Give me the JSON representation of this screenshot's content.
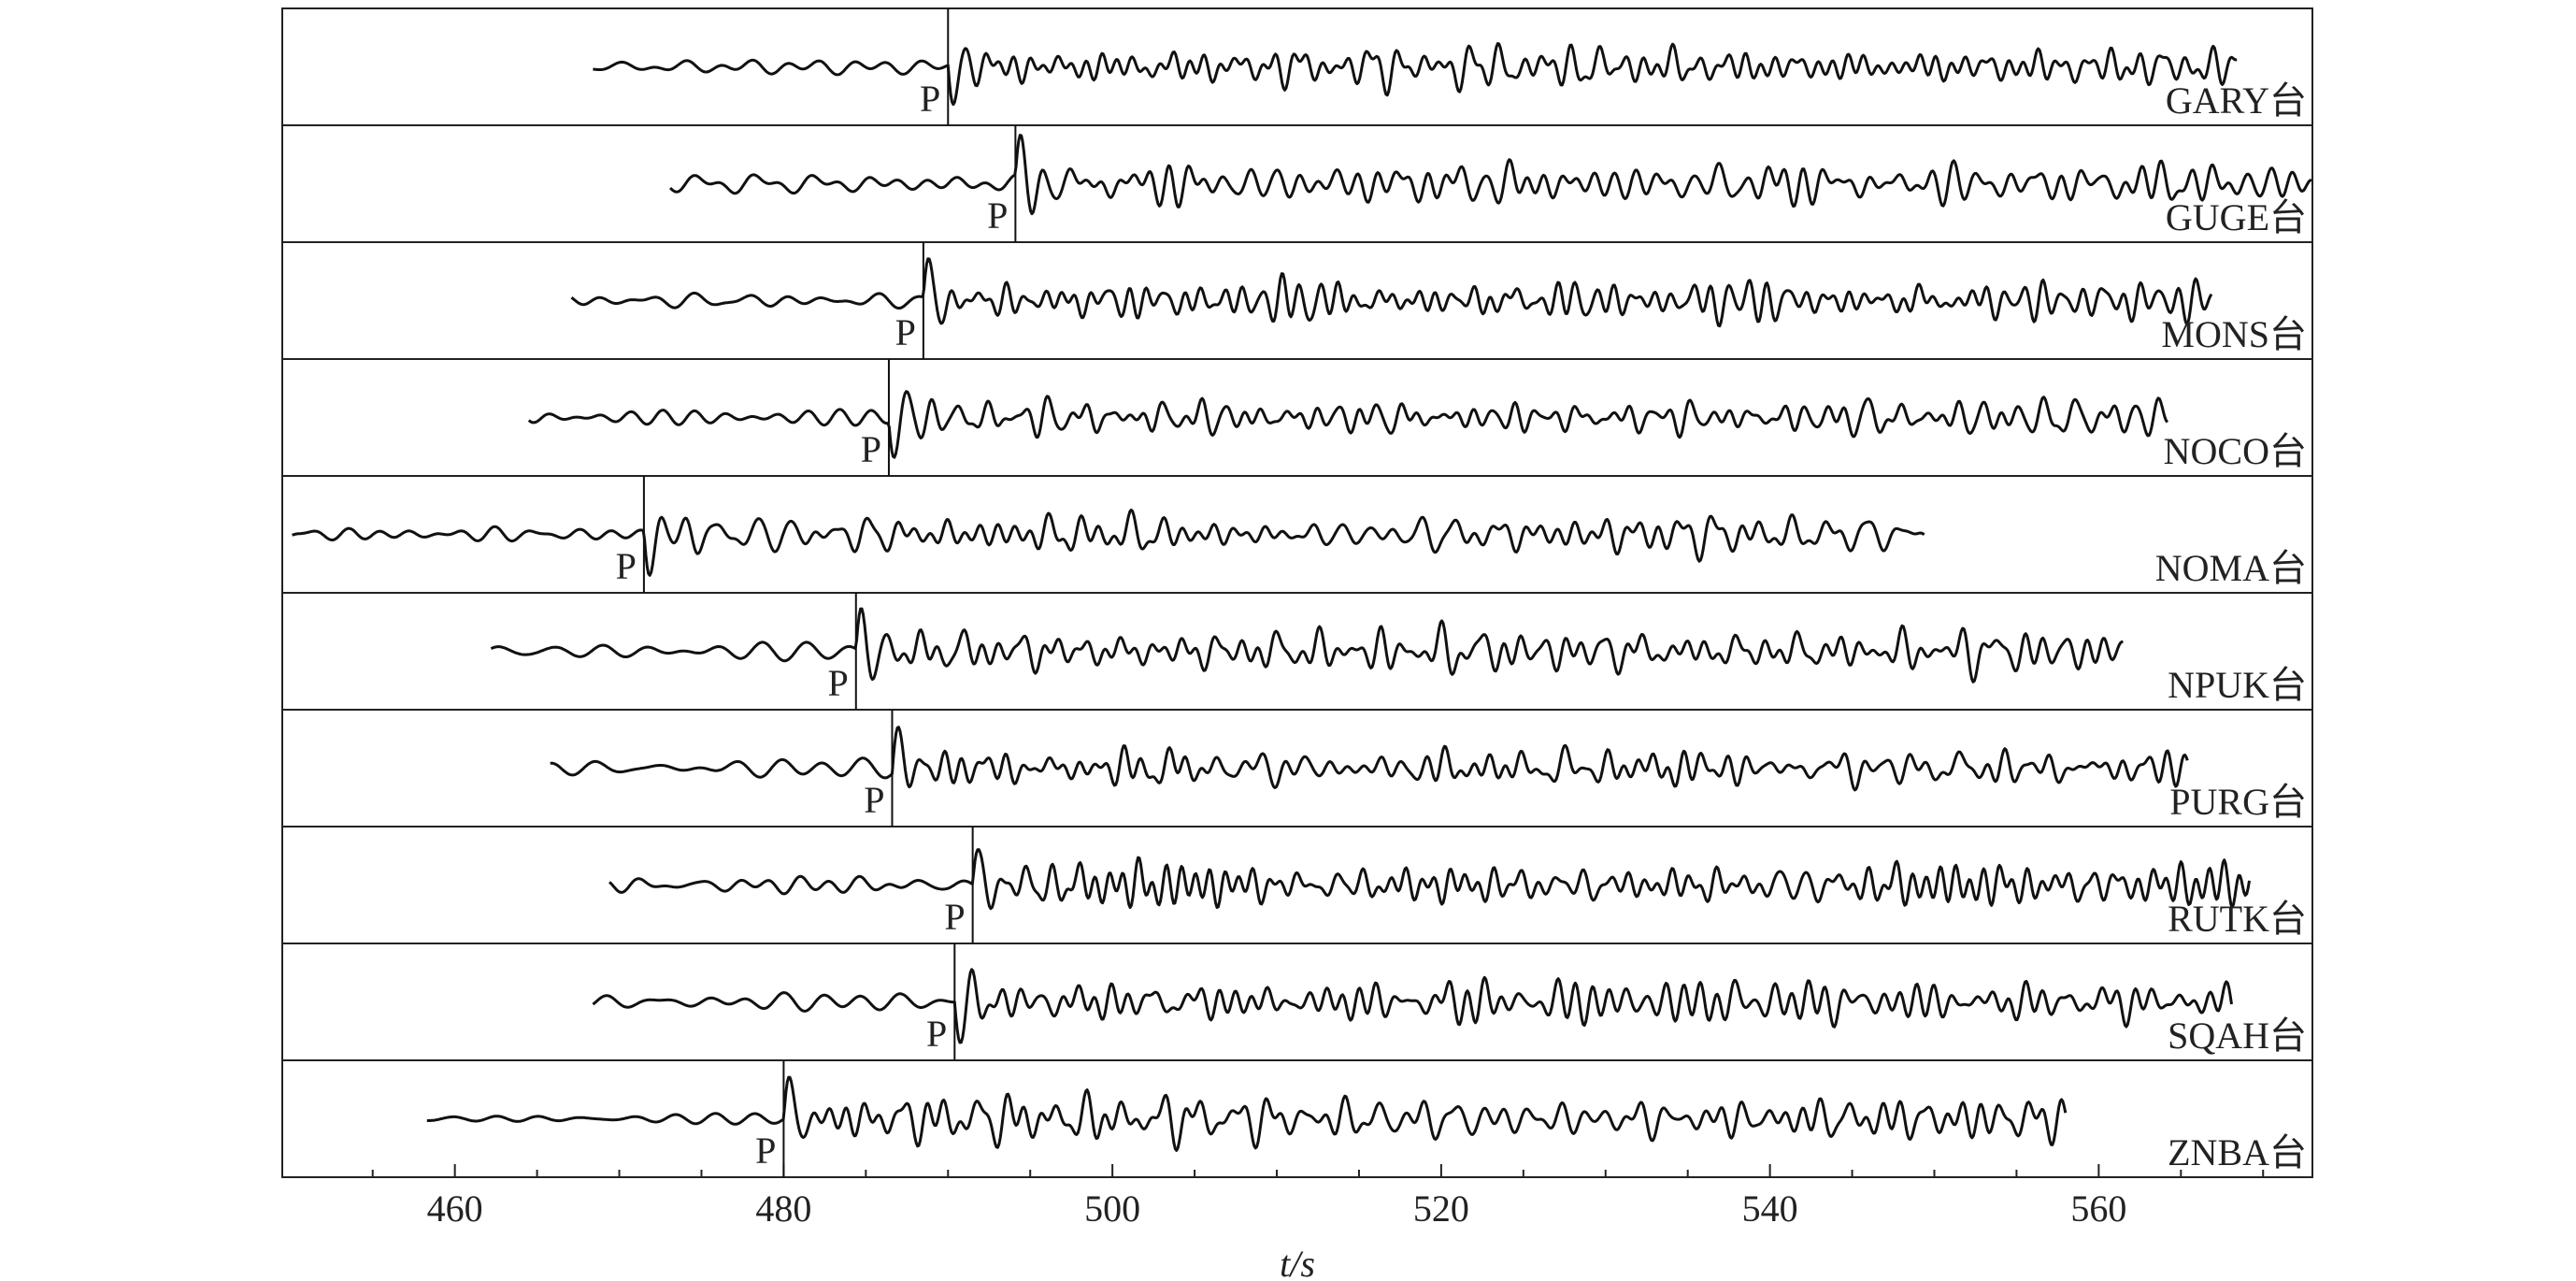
{
  "chart_data": {
    "type": "seismogram",
    "x_label": "t/s",
    "p_label": "P",
    "xlim": [
      449.5,
      573
    ],
    "xticks": [
      460,
      480,
      500,
      520,
      540,
      560
    ],
    "xminor_ticks": [
      455,
      465,
      470,
      475,
      485,
      490,
      495,
      505,
      510,
      515,
      525,
      530,
      535,
      545,
      550,
      555,
      565,
      570
    ],
    "stations": [
      {
        "name": "GARY台",
        "start": 468.4,
        "end": 568.4,
        "p_time": 490.0
      },
      {
        "name": "GUGE台",
        "start": 473.1,
        "end": 573.0,
        "p_time": 494.1
      },
      {
        "name": "MONS台",
        "start": 467.1,
        "end": 566.9,
        "p_time": 488.5
      },
      {
        "name": "NOCO台",
        "start": 464.5,
        "end": 564.2,
        "p_time": 486.4
      },
      {
        "name": "NOMA台",
        "start": 450.1,
        "end": 549.4,
        "p_time": 471.5
      },
      {
        "name": "NPUK台",
        "start": 462.2,
        "end": 561.5,
        "p_time": 484.4
      },
      {
        "name": "PURG台",
        "start": 465.8,
        "end": 565.4,
        "p_time": 486.6
      },
      {
        "name": "RUTK台",
        "start": 469.4,
        "end": 569.2,
        "p_time": 491.5
      },
      {
        "name": "SQAH台",
        "start": 468.4,
        "end": 568.1,
        "p_time": 490.4
      },
      {
        "name": "ZNBA台",
        "start": 458.3,
        "end": 558.0,
        "p_time": 480.0
      }
    ]
  }
}
